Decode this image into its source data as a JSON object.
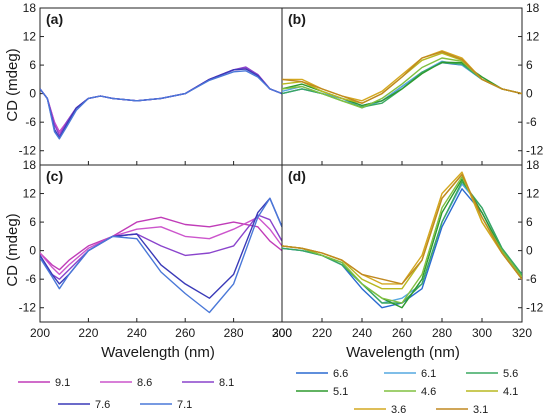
{
  "figure": {
    "ylabel": "CD (mdeg)",
    "xlabel": "Wavelength (nm)"
  },
  "chart_data": [
    {
      "panel": "(a)",
      "type": "line",
      "xlim": [
        200,
        300
      ],
      "ylim": [
        -15,
        18
      ],
      "xticks": [
        "200",
        "220",
        "240",
        "260",
        "280",
        "300"
      ],
      "yticks": [
        "-12",
        "-6",
        "0",
        "6",
        "12",
        "18"
      ],
      "y_axis_side": "left",
      "x_tick_labels_shown": false,
      "series": [
        {
          "name": "9.1",
          "color": "#c03cb8",
          "x": [
            200,
            203,
            206,
            208,
            211,
            215,
            220,
            225,
            230,
            240,
            250,
            260,
            270,
            280,
            285,
            290,
            295,
            300
          ],
          "y": [
            1,
            -1,
            -6,
            -8,
            -6,
            -3,
            -1,
            -0.5,
            -1,
            -1.5,
            -1,
            0,
            3,
            5,
            5.2,
            4,
            1,
            0
          ]
        },
        {
          "name": "8.6",
          "color": "#cc55cc",
          "x": [
            200,
            203,
            206,
            208,
            211,
            215,
            220,
            225,
            230,
            240,
            250,
            260,
            270,
            280,
            285,
            290,
            295,
            300
          ],
          "y": [
            1,
            -1,
            -6,
            -8.2,
            -6,
            -3,
            -1,
            -0.5,
            -1,
            -1.5,
            -1,
            0,
            3,
            5,
            5.4,
            4,
            1,
            0
          ]
        },
        {
          "name": "8.1",
          "color": "#8a44cc",
          "x": [
            200,
            203,
            206,
            208,
            211,
            215,
            220,
            225,
            230,
            240,
            250,
            260,
            270,
            280,
            285,
            290,
            295,
            300
          ],
          "y": [
            1,
            -1,
            -6.5,
            -8.8,
            -6,
            -3,
            -1,
            -0.5,
            -1,
            -1.5,
            -1,
            0,
            3,
            5,
            5.6,
            4,
            1,
            0
          ]
        },
        {
          "name": "7.6",
          "color": "#3a3ab8",
          "x": [
            200,
            203,
            206,
            208,
            211,
            215,
            220,
            225,
            230,
            240,
            250,
            260,
            270,
            280,
            285,
            290,
            295,
            300
          ],
          "y": [
            1,
            -1,
            -7.5,
            -9.3,
            -6.5,
            -3,
            -1,
            -0.5,
            -1,
            -1.5,
            -1,
            0,
            3,
            5,
            5.2,
            3.8,
            1,
            0
          ]
        },
        {
          "name": "7.1",
          "color": "#4a78d8",
          "x": [
            200,
            203,
            206,
            208,
            211,
            215,
            220,
            225,
            230,
            240,
            250,
            260,
            270,
            280,
            285,
            290,
            295,
            300
          ],
          "y": [
            1,
            -1,
            -8,
            -9.5,
            -7,
            -3.5,
            -1,
            -0.5,
            -1,
            -1.5,
            -1,
            0,
            2.8,
            4.6,
            4.8,
            3.5,
            1,
            0
          ]
        }
      ]
    },
    {
      "panel": "(b)",
      "type": "line",
      "xlim": [
        200,
        320
      ],
      "ylim": [
        -15,
        18
      ],
      "xticks": [
        "200",
        "220",
        "240",
        "260",
        "280",
        "300",
        "320"
      ],
      "yticks": [
        "-12",
        "-6",
        "0",
        "6",
        "12",
        "18"
      ],
      "y_axis_side": "right",
      "x_tick_labels_shown": false,
      "series": [
        {
          "name": "6.6",
          "color": "#2a6ad0",
          "x": [
            200,
            210,
            220,
            230,
            240,
            250,
            260,
            270,
            280,
            290,
            300,
            310,
            320
          ],
          "y": [
            0,
            1,
            0,
            -1,
            -2.5,
            -1.5,
            1.5,
            4.5,
            6.5,
            6,
            3,
            1,
            0
          ]
        },
        {
          "name": "6.1",
          "color": "#55a8e0",
          "x": [
            200,
            210,
            220,
            230,
            240,
            250,
            260,
            270,
            280,
            290,
            300,
            310,
            320
          ],
          "y": [
            0.5,
            1.5,
            0,
            -1,
            -3,
            -1.5,
            1.5,
            4.5,
            6.8,
            6,
            3,
            1,
            0
          ]
        },
        {
          "name": "5.6",
          "color": "#3aa860",
          "x": [
            200,
            210,
            220,
            230,
            240,
            250,
            260,
            270,
            280,
            290,
            300,
            310,
            320
          ],
          "y": [
            0,
            1,
            0,
            -1.5,
            -2.8,
            -2,
            1,
            4.5,
            6.5,
            6.2,
            3,
            1,
            0
          ]
        },
        {
          "name": "5.1",
          "color": "#2e9a2e",
          "x": [
            200,
            210,
            220,
            230,
            240,
            250,
            260,
            270,
            280,
            290,
            300,
            310,
            320
          ],
          "y": [
            1,
            2,
            0.5,
            -1,
            -2.5,
            -1.5,
            1,
            4.2,
            6.6,
            6.5,
            3.5,
            1,
            0
          ]
        },
        {
          "name": "4.6",
          "color": "#80c040",
          "x": [
            200,
            210,
            220,
            230,
            240,
            250,
            260,
            270,
            280,
            290,
            300,
            310,
            320
          ],
          "y": [
            1,
            1.5,
            0,
            -1.5,
            -3,
            -1,
            2,
            5.5,
            7.5,
            6.8,
            3,
            1,
            0
          ]
        },
        {
          "name": "4.1",
          "color": "#b8b820",
          "x": [
            200,
            210,
            220,
            230,
            240,
            250,
            260,
            270,
            280,
            290,
            300,
            310,
            320
          ],
          "y": [
            2,
            2.5,
            0.5,
            -1,
            -2,
            0,
            3.5,
            7,
            8.5,
            7,
            3,
            1,
            0
          ]
        },
        {
          "name": "3.6",
          "color": "#d4a820",
          "x": [
            200,
            210,
            220,
            230,
            240,
            250,
            260,
            270,
            280,
            290,
            300,
            310,
            320
          ],
          "y": [
            3,
            3,
            1,
            -0.5,
            -1.5,
            0.5,
            4,
            7.5,
            9,
            7.5,
            3,
            1,
            0
          ]
        },
        {
          "name": "3.1",
          "color": "#c08820",
          "x": [
            200,
            210,
            220,
            230,
            240,
            250,
            260,
            270,
            280,
            290,
            300,
            310,
            320
          ],
          "y": [
            3,
            2.5,
            1,
            -0.5,
            -2,
            0,
            3.5,
            7.5,
            8.8,
            7.2,
            3,
            1,
            0
          ]
        }
      ]
    },
    {
      "panel": "(c)",
      "type": "line",
      "xlim": [
        200,
        300
      ],
      "ylim": [
        -15,
        18
      ],
      "xticks": [
        "200",
        "220",
        "240",
        "260",
        "280",
        "300"
      ],
      "yticks": [
        "-12",
        "-6",
        "0",
        "6",
        "12",
        "18"
      ],
      "y_axis_side": "left",
      "x_tick_labels_shown": true,
      "series": [
        {
          "name": "9.1",
          "color": "#c03cb8",
          "x": [
            200,
            205,
            208,
            212,
            220,
            230,
            240,
            250,
            260,
            270,
            280,
            290,
            295,
            300
          ],
          "y": [
            -0.5,
            -3,
            -4,
            -2,
            1,
            3,
            6,
            7,
            5.5,
            5,
            6,
            5,
            2,
            0
          ]
        },
        {
          "name": "8.6",
          "color": "#cc55cc",
          "x": [
            200,
            205,
            208,
            212,
            220,
            230,
            240,
            250,
            260,
            270,
            280,
            290,
            295,
            300
          ],
          "y": [
            -0.5,
            -3.5,
            -5,
            -3,
            0.5,
            3,
            4.5,
            5,
            3,
            2.5,
            4.5,
            7,
            4.5,
            1
          ]
        },
        {
          "name": "8.1",
          "color": "#8a44cc",
          "x": [
            200,
            205,
            208,
            212,
            220,
            230,
            240,
            250,
            260,
            270,
            280,
            290,
            295,
            300
          ],
          "y": [
            -1,
            -5,
            -6,
            -4,
            0,
            3,
            3.5,
            1,
            -1,
            -0.5,
            1,
            7.5,
            6.5,
            2
          ]
        },
        {
          "name": "7.6",
          "color": "#3a3ab8",
          "x": [
            200,
            205,
            208,
            212,
            220,
            230,
            240,
            250,
            260,
            270,
            280,
            290,
            295,
            300
          ],
          "y": [
            -1,
            -5,
            -7,
            -5,
            0,
            3,
            3.5,
            -3,
            -7,
            -10,
            -5,
            8,
            11,
            5
          ]
        },
        {
          "name": "7.1",
          "color": "#4a78d8",
          "x": [
            200,
            205,
            208,
            212,
            220,
            230,
            240,
            250,
            260,
            270,
            280,
            290,
            295,
            300
          ],
          "y": [
            -1.5,
            -5.5,
            -8,
            -5,
            0,
            3,
            2.5,
            -4.5,
            -9,
            -13,
            -7,
            7,
            11,
            5
          ]
        }
      ]
    },
    {
      "panel": "(d)",
      "type": "line",
      "xlim": [
        200,
        320
      ],
      "ylim": [
        -15,
        18
      ],
      "xticks": [
        "200",
        "220",
        "240",
        "260",
        "280",
        "300",
        "320"
      ],
      "yticks": [
        "-12",
        "-6",
        "0",
        "6",
        "12",
        "18"
      ],
      "y_axis_side": "right",
      "x_tick_labels_shown": true,
      "series": [
        {
          "name": "6.6",
          "color": "#2a6ad0",
          "x": [
            200,
            210,
            220,
            230,
            240,
            250,
            260,
            270,
            280,
            290,
            300,
            310,
            320
          ],
          "y": [
            0.5,
            0,
            -1,
            -3,
            -8,
            -12,
            -11,
            -8,
            5,
            13,
            8,
            0,
            -5
          ]
        },
        {
          "name": "6.1",
          "color": "#55a8e0",
          "x": [
            200,
            210,
            220,
            230,
            240,
            250,
            260,
            270,
            280,
            290,
            300,
            310,
            320
          ],
          "y": [
            0.5,
            0,
            -1,
            -3,
            -7,
            -11,
            -10,
            -7,
            6,
            14,
            9,
            0.5,
            -5
          ]
        },
        {
          "name": "5.6",
          "color": "#3aa860",
          "x": [
            200,
            210,
            220,
            230,
            240,
            250,
            260,
            270,
            280,
            290,
            300,
            310,
            320
          ],
          "y": [
            0.5,
            0,
            -1,
            -3,
            -7,
            -11,
            -11,
            -7,
            6,
            14.5,
            9,
            0.5,
            -5
          ]
        },
        {
          "name": "5.1",
          "color": "#2e9a2e",
          "x": [
            200,
            210,
            220,
            230,
            240,
            250,
            260,
            270,
            280,
            290,
            300,
            310,
            320
          ],
          "y": [
            1,
            0.5,
            -1,
            -2.5,
            -7,
            -10,
            -12,
            -6,
            8,
            15,
            8,
            0,
            -5.5
          ]
        },
        {
          "name": "4.6",
          "color": "#80c040",
          "x": [
            200,
            210,
            220,
            230,
            240,
            250,
            260,
            270,
            280,
            290,
            300,
            310,
            320
          ],
          "y": [
            1,
            0.5,
            -1,
            -2.5,
            -7,
            -10,
            -11,
            -5,
            9,
            15.5,
            7,
            0,
            -5.5
          ]
        },
        {
          "name": "4.1",
          "color": "#b8b820",
          "x": [
            200,
            210,
            220,
            230,
            240,
            250,
            260,
            270,
            280,
            290,
            300,
            310,
            320
          ],
          "y": [
            1,
            0.5,
            -0.5,
            -2,
            -6,
            -8,
            -8,
            -2,
            11,
            16,
            6,
            -0.5,
            -6
          ]
        },
        {
          "name": "3.6",
          "color": "#d4a820",
          "x": [
            200,
            210,
            220,
            230,
            240,
            250,
            260,
            270,
            280,
            290,
            300,
            310,
            320
          ],
          "y": [
            1,
            0.5,
            -0.5,
            -2,
            -5,
            -7,
            -7,
            -1,
            12,
            16.5,
            6,
            -0.5,
            -6
          ]
        },
        {
          "name": "3.1",
          "color": "#c08820",
          "x": [
            200,
            210,
            220,
            230,
            240,
            250,
            260,
            270,
            280,
            290,
            300,
            310,
            320
          ],
          "y": [
            1,
            0.5,
            -0.5,
            -2,
            -5,
            -6,
            -7,
            -2,
            11,
            16,
            7,
            -0.5,
            -6
          ]
        }
      ]
    }
  ],
  "legend_left": {
    "items": [
      {
        "label": "9.1",
        "color": "#c03cb8"
      },
      {
        "label": "8.6",
        "color": "#cc55cc"
      },
      {
        "label": "8.1",
        "color": "#8a44cc"
      },
      {
        "label": "7.6",
        "color": "#3a3ab8"
      },
      {
        "label": "7.1",
        "color": "#4a78d8"
      }
    ]
  },
  "legend_right": {
    "items": [
      {
        "label": "6.6",
        "color": "#2a6ad0"
      },
      {
        "label": "6.1",
        "color": "#55a8e0"
      },
      {
        "label": "5.6",
        "color": "#3aa860"
      },
      {
        "label": "5.1",
        "color": "#2e9a2e"
      },
      {
        "label": "4.6",
        "color": "#80c040"
      },
      {
        "label": "4.1",
        "color": "#b8b820"
      },
      {
        "label": "3.6",
        "color": "#d4a820"
      },
      {
        "label": "3.1",
        "color": "#c08820"
      }
    ]
  }
}
